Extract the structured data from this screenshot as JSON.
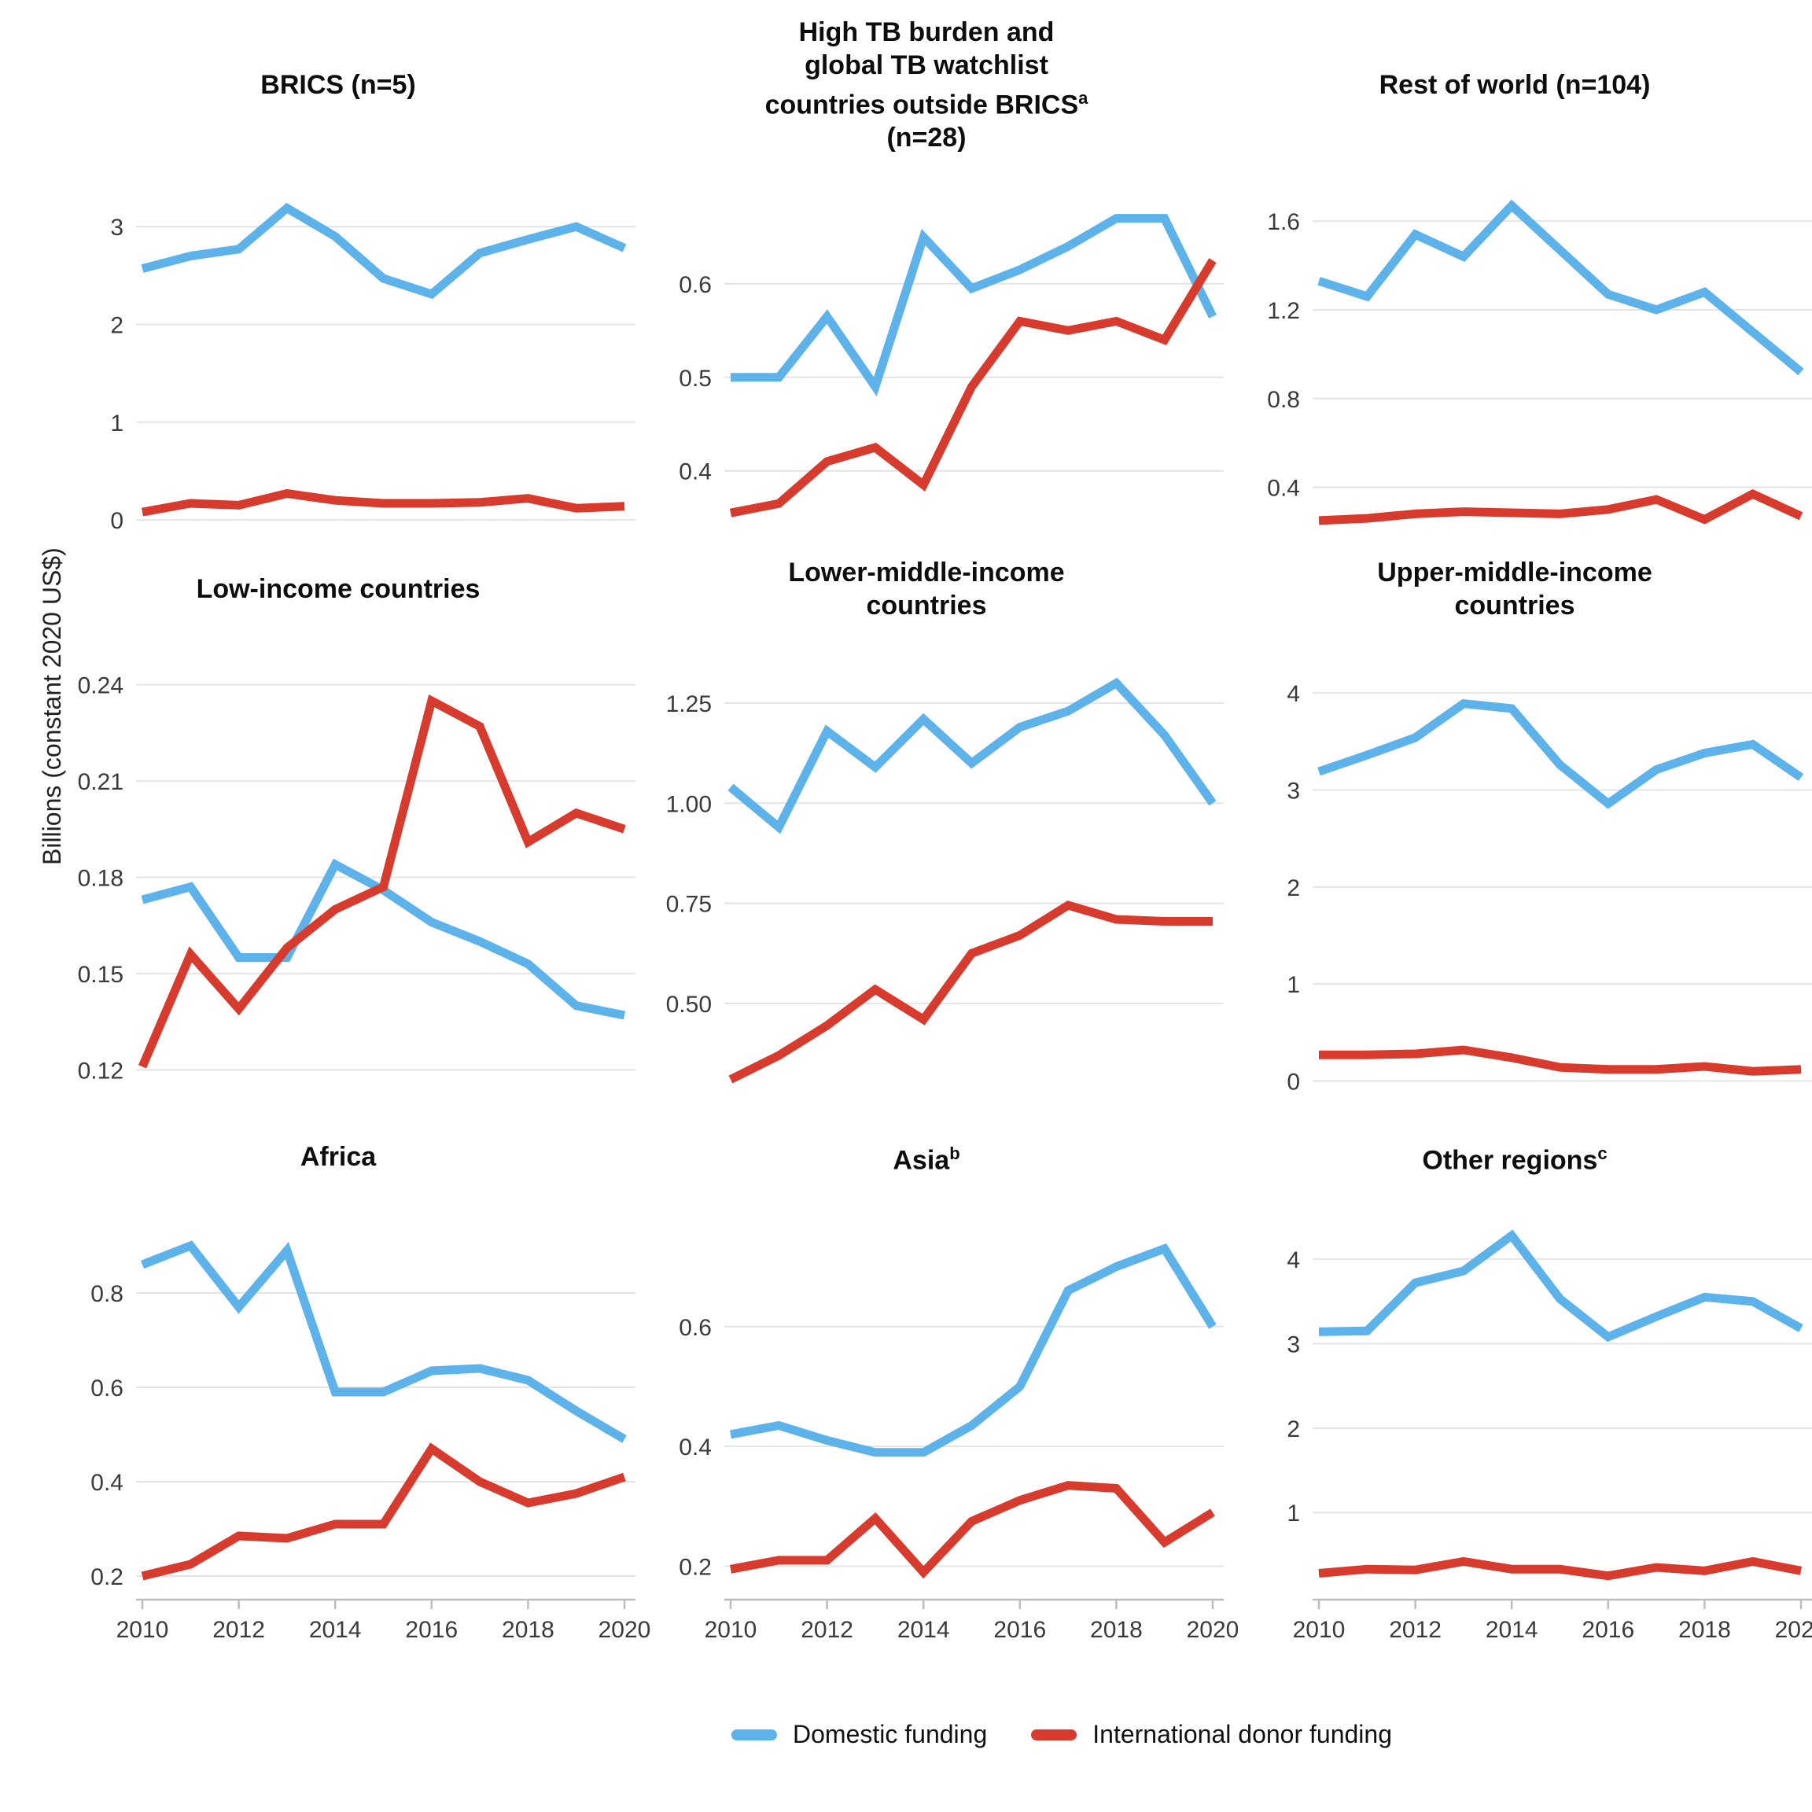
{
  "y_axis_label": "Billions (constant 2020 US$)",
  "legend": {
    "items": [
      {
        "id": "domestic",
        "label": "Domestic funding",
        "color": "#5CB2E9"
      },
      {
        "id": "donor",
        "label": "International donor funding",
        "color": "#D73B2E"
      }
    ]
  },
  "style_colors": {
    "gridline": "#E4E4E4",
    "axis_line": "#BDBDBD",
    "tick_text": "#3A3A3A",
    "title_text": "#0D0D0D"
  },
  "x": {
    "years": [
      2010,
      2011,
      2012,
      2013,
      2014,
      2015,
      2016,
      2017,
      2018,
      2019,
      2020
    ],
    "tick_values": [
      2010,
      2012,
      2014,
      2016,
      2018,
      2020
    ],
    "tick_labels": [
      "2010",
      "2012",
      "2014",
      "2016",
      "2018",
      "2020"
    ]
  },
  "chart_data": [
    {
      "id": "brics",
      "type": "line",
      "title_lines": [
        {
          "text": "BRICS (n=5)"
        }
      ],
      "ylim": [
        -0.12,
        3.42
      ],
      "y_ticks": [
        {
          "v": 0,
          "label": "0"
        },
        {
          "v": 1,
          "label": "1"
        },
        {
          "v": 2,
          "label": "2"
        },
        {
          "v": 3,
          "label": "3"
        }
      ],
      "series": [
        {
          "id": "domestic",
          "name": "Domestic funding",
          "values": [
            2.57,
            2.7,
            2.77,
            3.19,
            2.9,
            2.47,
            2.31,
            2.73,
            2.87,
            3.0,
            2.78
          ]
        },
        {
          "id": "donor",
          "name": "International donor funding",
          "values": [
            0.08,
            0.17,
            0.15,
            0.27,
            0.2,
            0.17,
            0.17,
            0.18,
            0.22,
            0.12,
            0.14
          ]
        }
      ]
    },
    {
      "id": "high-tb-watchlist",
      "type": "line",
      "title_lines": [
        {
          "text": "High TB burden and"
        },
        {
          "text": "global TB watchlist"
        },
        {
          "text": "countries outside BRICS",
          "sup": "a"
        },
        {
          "text": "(n=28)"
        }
      ],
      "ylim": [
        0.335,
        0.705
      ],
      "y_ticks": [
        {
          "v": 0.4,
          "label": "0.4"
        },
        {
          "v": 0.5,
          "label": "0.5"
        },
        {
          "v": 0.6,
          "label": "0.6"
        }
      ],
      "series": [
        {
          "id": "domestic",
          "name": "Domestic funding",
          "values": [
            0.5,
            0.5,
            0.565,
            0.49,
            0.65,
            0.595,
            0.615,
            0.64,
            0.67,
            0.67,
            0.565
          ]
        },
        {
          "id": "donor",
          "name": "International donor funding",
          "values": [
            0.355,
            0.365,
            0.41,
            0.425,
            0.385,
            0.49,
            0.56,
            0.55,
            0.56,
            0.54,
            0.625
          ]
        }
      ]
    },
    {
      "id": "rest-of-world",
      "type": "line",
      "title_lines": [
        {
          "text": "Rest of world (n=104)"
        }
      ],
      "ylim": [
        0.2,
        1.76
      ],
      "y_ticks": [
        {
          "v": 0.4,
          "label": "0.4"
        },
        {
          "v": 0.8,
          "label": "0.8"
        },
        {
          "v": 1.2,
          "label": "1.2"
        },
        {
          "v": 1.6,
          "label": "1.6"
        }
      ],
      "series": [
        {
          "id": "domestic",
          "name": "Domestic funding",
          "values": [
            1.33,
            1.26,
            1.54,
            1.44,
            1.67,
            1.47,
            1.27,
            1.2,
            1.28,
            1.1,
            0.92
          ]
        },
        {
          "id": "donor",
          "name": "International donor funding",
          "values": [
            0.25,
            0.26,
            0.28,
            0.29,
            0.285,
            0.28,
            0.3,
            0.345,
            0.255,
            0.37,
            0.27
          ]
        }
      ]
    },
    {
      "id": "low-income",
      "type": "line",
      "title_lines": [
        {
          "text": "Low-income countries"
        }
      ],
      "ylim": [
        0.112,
        0.248
      ],
      "y_ticks": [
        {
          "v": 0.12,
          "label": "0.12"
        },
        {
          "v": 0.15,
          "label": "0.15"
        },
        {
          "v": 0.18,
          "label": "0.18"
        },
        {
          "v": 0.21,
          "label": "0.21"
        },
        {
          "v": 0.24,
          "label": "0.24"
        }
      ],
      "series": [
        {
          "id": "domestic",
          "name": "Domestic funding",
          "values": [
            0.173,
            0.177,
            0.155,
            0.155,
            0.184,
            0.176,
            0.166,
            0.16,
            0.153,
            0.14,
            0.137
          ]
        },
        {
          "id": "donor",
          "name": "International donor funding",
          "values": [
            0.121,
            0.156,
            0.139,
            0.158,
            0.17,
            0.177,
            0.235,
            0.227,
            0.191,
            0.2,
            0.195
          ]
        }
      ]
    },
    {
      "id": "lower-middle-income",
      "type": "line",
      "title_lines": [
        {
          "text": "Lower-middle-income"
        },
        {
          "text": "countries"
        }
      ],
      "ylim": [
        0.27,
        1.36
      ],
      "y_ticks": [
        {
          "v": 0.5,
          "label": "0.50"
        },
        {
          "v": 0.75,
          "label": "0.75"
        },
        {
          "v": 1.0,
          "label": "1.00"
        },
        {
          "v": 1.25,
          "label": "1.25"
        }
      ],
      "series": [
        {
          "id": "domestic",
          "name": "Domestic funding",
          "values": [
            1.04,
            0.94,
            1.18,
            1.09,
            1.21,
            1.1,
            1.19,
            1.23,
            1.3,
            1.17,
            1.0
          ]
        },
        {
          "id": "donor",
          "name": "International donor funding",
          "values": [
            0.31,
            0.37,
            0.445,
            0.535,
            0.46,
            0.625,
            0.67,
            0.745,
            0.71,
            0.705,
            0.705
          ]
        }
      ]
    },
    {
      "id": "upper-middle-income",
      "type": "line",
      "title_lines": [
        {
          "text": "Upper-middle-income"
        },
        {
          "text": "countries"
        }
      ],
      "ylim": [
        -0.15,
        4.35
      ],
      "y_ticks": [
        {
          "v": 0,
          "label": "0"
        },
        {
          "v": 1,
          "label": "1"
        },
        {
          "v": 2,
          "label": "2"
        },
        {
          "v": 3,
          "label": "3"
        },
        {
          "v": 4,
          "label": "4"
        }
      ],
      "series": [
        {
          "id": "domestic",
          "name": "Domestic funding",
          "values": [
            3.19,
            3.36,
            3.54,
            3.89,
            3.84,
            3.26,
            2.86,
            3.21,
            3.38,
            3.47,
            3.13
          ]
        },
        {
          "id": "donor",
          "name": "International donor funding",
          "values": [
            0.27,
            0.27,
            0.28,
            0.32,
            0.24,
            0.14,
            0.12,
            0.12,
            0.15,
            0.1,
            0.12
          ]
        }
      ]
    },
    {
      "id": "africa",
      "type": "line",
      "title_lines": [
        {
          "text": "Africa"
        }
      ],
      "ylim": [
        0.17,
        0.97
      ],
      "y_ticks": [
        {
          "v": 0.2,
          "label": "0.2"
        },
        {
          "v": 0.4,
          "label": "0.4"
        },
        {
          "v": 0.6,
          "label": "0.6"
        },
        {
          "v": 0.8,
          "label": "0.8"
        }
      ],
      "series": [
        {
          "id": "domestic",
          "name": "Domestic funding",
          "values": [
            0.86,
            0.9,
            0.77,
            0.89,
            0.59,
            0.59,
            0.635,
            0.64,
            0.615,
            0.55,
            0.49
          ]
        },
        {
          "id": "donor",
          "name": "International donor funding",
          "values": [
            0.2,
            0.225,
            0.285,
            0.28,
            0.31,
            0.31,
            0.47,
            0.4,
            0.355,
            0.375,
            0.41
          ]
        }
      ]
    },
    {
      "id": "asia",
      "type": "line",
      "title_lines": [
        {
          "text": "Asia",
          "sup": "b"
        }
      ],
      "ylim": [
        0.16,
        0.79
      ],
      "y_ticks": [
        {
          "v": 0.2,
          "label": "0.2"
        },
        {
          "v": 0.4,
          "label": "0.4"
        },
        {
          "v": 0.6,
          "label": "0.6"
        }
      ],
      "series": [
        {
          "id": "domestic",
          "name": "Domestic funding",
          "values": [
            0.42,
            0.435,
            0.41,
            0.39,
            0.39,
            0.435,
            0.5,
            0.66,
            0.7,
            0.73,
            0.6
          ]
        },
        {
          "id": "donor",
          "name": "International donor funding",
          "values": [
            0.195,
            0.21,
            0.21,
            0.28,
            0.19,
            0.275,
            0.31,
            0.335,
            0.33,
            0.24,
            0.29
          ]
        }
      ]
    },
    {
      "id": "other-regions",
      "type": "line",
      "title_lines": [
        {
          "text": "Other regions",
          "sup": "c"
        }
      ],
      "ylim": [
        0.08,
        4.55
      ],
      "y_ticks": [
        {
          "v": 1,
          "label": "1"
        },
        {
          "v": 2,
          "label": "2"
        },
        {
          "v": 3,
          "label": "3"
        },
        {
          "v": 4,
          "label": "4"
        }
      ],
      "series": [
        {
          "id": "domestic",
          "name": "Domestic funding",
          "values": [
            3.14,
            3.15,
            3.72,
            3.86,
            4.28,
            3.53,
            3.08,
            3.32,
            3.55,
            3.5,
            3.18
          ]
        },
        {
          "id": "donor",
          "name": "International donor funding",
          "values": [
            0.28,
            0.33,
            0.32,
            0.42,
            0.33,
            0.33,
            0.25,
            0.35,
            0.31,
            0.42,
            0.31
          ]
        }
      ]
    }
  ]
}
